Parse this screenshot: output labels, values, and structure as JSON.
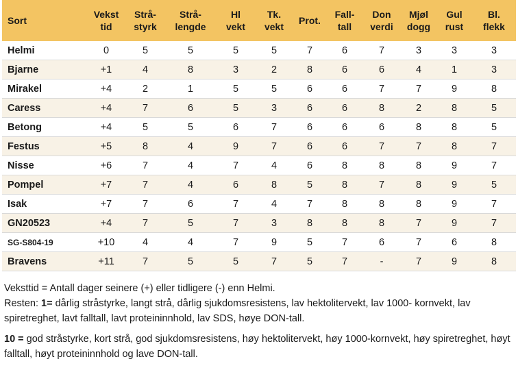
{
  "table": {
    "header": [
      [
        "Sort"
      ],
      [
        "Vekst",
        "tid"
      ],
      [
        "Strå-",
        "styrk"
      ],
      [
        "Strå-",
        "lengde"
      ],
      [
        "Hl",
        "vekt"
      ],
      [
        "Tk.",
        "vekt"
      ],
      [
        "Prot."
      ],
      [
        "Fall-",
        "tall"
      ],
      [
        "Don",
        "verdi"
      ],
      [
        "Mjøl",
        "dogg"
      ],
      [
        "Gul",
        "rust"
      ],
      [
        "Bl.",
        "flekk"
      ]
    ],
    "rows": [
      [
        "Helmi",
        "0",
        "5",
        "5",
        "5",
        "5",
        "7",
        "6",
        "7",
        "3",
        "3",
        "3"
      ],
      [
        "Bjarne",
        "+1",
        "4",
        "8",
        "3",
        "2",
        "8",
        "6",
        "6",
        "4",
        "1",
        "3"
      ],
      [
        "Mirakel",
        "+4",
        "2",
        "1",
        "5",
        "5",
        "6",
        "6",
        "7",
        "7",
        "9",
        "8"
      ],
      [
        "Caress",
        "+4",
        "7",
        "6",
        "5",
        "3",
        "6",
        "6",
        "8",
        "2",
        "8",
        "5"
      ],
      [
        "Betong",
        "+4",
        "5",
        "5",
        "6",
        "7",
        "6",
        "6",
        "6",
        "8",
        "8",
        "5"
      ],
      [
        "Festus",
        "+5",
        "8",
        "4",
        "9",
        "7",
        "6",
        "6",
        "7",
        "7",
        "8",
        "7"
      ],
      [
        "Nisse",
        "+6",
        "7",
        "4",
        "7",
        "4",
        "6",
        "8",
        "8",
        "8",
        "9",
        "7"
      ],
      [
        "Pompel",
        "+7",
        "7",
        "4",
        "6",
        "8",
        "5",
        "8",
        "7",
        "8",
        "9",
        "5"
      ],
      [
        "Isak",
        "+7",
        "7",
        "6",
        "7",
        "4",
        "7",
        "8",
        "8",
        "8",
        "9",
        "7"
      ],
      [
        "GN20523",
        "+4",
        "7",
        "5",
        "7",
        "3",
        "8",
        "8",
        "8",
        "7",
        "9",
        "7"
      ],
      [
        "SG-S804-19",
        "+10",
        "4",
        "4",
        "7",
        "9",
        "5",
        "7",
        "6",
        "7",
        "6",
        "8"
      ],
      [
        "Bravens",
        "+11",
        "7",
        "5",
        "5",
        "7",
        "5",
        "7",
        "-",
        "7",
        "9",
        "8"
      ]
    ]
  },
  "notes": {
    "veksttid": "Veksttid = Antall dager seinere (+) eller tidligere (-) enn Helmi.",
    "resten_prefix": "Resten:",
    "resten_bold": "1=",
    "resten_text": "dårlig stråstyrke, langt strå, dårlig sjukdomsresistens, lav hektolitervekt, lav 1000- kornvekt, lav spiretreghet, lavt falltall, lavt proteininnhold, lav SDS, høye DON-tall.",
    "ten_bold": "10 =",
    "ten_text": "god stråstyrke, kort strå, god sjukdomsresistens, høy hektolitervekt, høy 1000-kornvekt, høy spiretreghet, høyt falltall, høyt proteininnhold og lave DON-tall."
  }
}
